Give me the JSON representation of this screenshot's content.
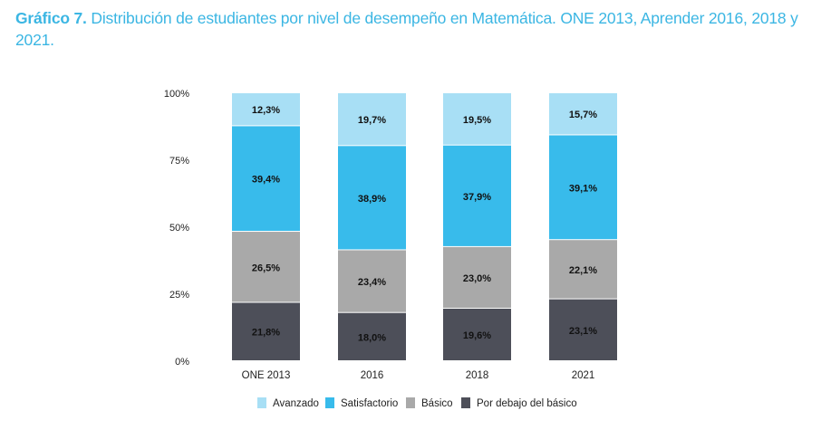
{
  "title": {
    "label": "Gráfico 7.",
    "text": " Distribución de estudiantes por nivel de desempeño en Matemática. ONE 2013, Aprender 2016, 2018 y 2021."
  },
  "chart_data": {
    "type": "bar",
    "stacked": true,
    "categories": [
      "ONE 2013",
      "2016",
      "2018",
      "2021"
    ],
    "ylim": [
      0,
      100
    ],
    "yticks": [
      "0%",
      "25%",
      "50%",
      "75%",
      "100%"
    ],
    "yticks_values": [
      0,
      25,
      50,
      75,
      100
    ],
    "grid": false,
    "legend": "bottom",
    "series": [
      {
        "name": "Por debajo del básico",
        "color": "#4d4f59",
        "values": [
          21.8,
          18.0,
          19.6,
          23.1
        ],
        "labels": [
          "21,8%",
          "18,0%",
          "19,6%",
          "23,1%"
        ]
      },
      {
        "name": "Básico",
        "color": "#a9a9a9",
        "values": [
          26.5,
          23.4,
          23.0,
          22.1
        ],
        "labels": [
          "26,5%",
          "23,4%",
          "23,0%",
          "22,1%"
        ]
      },
      {
        "name": "Satisfactorio",
        "color": "#38bbeb",
        "values": [
          39.4,
          38.9,
          37.9,
          39.1
        ],
        "labels": [
          "39,4%",
          "38,9%",
          "37,9%",
          "39,1%"
        ]
      },
      {
        "name": "Avanzado",
        "color": "#a8dff5",
        "values": [
          12.3,
          19.7,
          19.5,
          15.7
        ],
        "labels": [
          "12,3%",
          "19,7%",
          "19,5%",
          "15,7%"
        ]
      }
    ],
    "legend_order": [
      "Avanzado",
      "Satisfactorio",
      "Básico",
      "Por debajo del básico"
    ]
  }
}
